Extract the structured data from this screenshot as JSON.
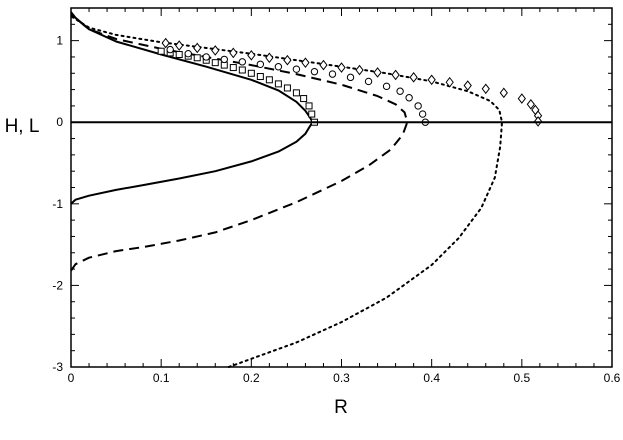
{
  "chart_data": {
    "type": "line",
    "xlabel": "R",
    "ylabel": "H, L",
    "xlim": [
      0,
      0.6
    ],
    "ylim": [
      -3,
      1.4
    ],
    "x_ticks": [
      "0",
      "0.1",
      "0.2",
      "0.3",
      "0.4",
      "0.5",
      "0.6"
    ],
    "y_ticks": [
      "-3",
      "-2",
      "-1",
      "0",
      "1"
    ],
    "grid": false,
    "legend": "none",
    "series": [
      {
        "style": "solid",
        "points": [
          [
            0,
            -1
          ],
          [
            0.005,
            -0.95
          ],
          [
            0.02,
            -0.9
          ],
          [
            0.05,
            -0.83
          ],
          [
            0.08,
            -0.77
          ],
          [
            0.12,
            -0.69
          ],
          [
            0.16,
            -0.6
          ],
          [
            0.2,
            -0.48
          ],
          [
            0.23,
            -0.36
          ],
          [
            0.25,
            -0.24
          ],
          [
            0.26,
            -0.14
          ],
          [
            0.265,
            -0.05
          ],
          [
            0.268,
            0
          ],
          [
            0.265,
            0.06
          ],
          [
            0.26,
            0.14
          ],
          [
            0.25,
            0.25
          ],
          [
            0.23,
            0.39
          ],
          [
            0.2,
            0.52
          ],
          [
            0.15,
            0.68
          ],
          [
            0.1,
            0.83
          ],
          [
            0.05,
            0.99
          ],
          [
            0.02,
            1.14
          ],
          [
            0.005,
            1.28
          ],
          [
            0,
            1.35
          ]
        ]
      },
      {
        "style": "dashed",
        "points": [
          [
            0,
            -1.82
          ],
          [
            0.005,
            -1.74
          ],
          [
            0.02,
            -1.66
          ],
          [
            0.05,
            -1.58
          ],
          [
            0.08,
            -1.53
          ],
          [
            0.12,
            -1.45
          ],
          [
            0.16,
            -1.35
          ],
          [
            0.2,
            -1.2
          ],
          [
            0.25,
            -0.98
          ],
          [
            0.3,
            -0.72
          ],
          [
            0.33,
            -0.53
          ],
          [
            0.355,
            -0.33
          ],
          [
            0.368,
            -0.15
          ],
          [
            0.373,
            0
          ],
          [
            0.37,
            0.12
          ],
          [
            0.36,
            0.22
          ],
          [
            0.34,
            0.32
          ],
          [
            0.3,
            0.46
          ],
          [
            0.25,
            0.59
          ],
          [
            0.2,
            0.7
          ],
          [
            0.15,
            0.8
          ],
          [
            0.1,
            0.9
          ],
          [
            0.05,
            1.02
          ],
          [
            0.02,
            1.14
          ],
          [
            0,
            1.32
          ]
        ]
      },
      {
        "style": "dotted",
        "points": [
          [
            0.175,
            -3
          ],
          [
            0.2,
            -2.9
          ],
          [
            0.25,
            -2.7
          ],
          [
            0.3,
            -2.45
          ],
          [
            0.35,
            -2.15
          ],
          [
            0.4,
            -1.75
          ],
          [
            0.43,
            -1.42
          ],
          [
            0.455,
            -1.05
          ],
          [
            0.47,
            -0.68
          ],
          [
            0.476,
            -0.3
          ],
          [
            0.478,
            0
          ],
          [
            0.475,
            0.15
          ],
          [
            0.465,
            0.26
          ],
          [
            0.44,
            0.38
          ],
          [
            0.4,
            0.5
          ],
          [
            0.35,
            0.6
          ],
          [
            0.3,
            0.68
          ],
          [
            0.25,
            0.76
          ],
          [
            0.2,
            0.84
          ],
          [
            0.15,
            0.91
          ],
          [
            0.1,
            0.98
          ],
          [
            0.05,
            1.07
          ],
          [
            0.02,
            1.16
          ],
          [
            0,
            1.3
          ]
        ]
      },
      {
        "style": "marker-square",
        "points": [
          [
            0.1,
            0.87
          ],
          [
            0.11,
            0.85
          ],
          [
            0.12,
            0.83
          ],
          [
            0.13,
            0.81
          ],
          [
            0.14,
            0.79
          ],
          [
            0.15,
            0.76
          ],
          [
            0.16,
            0.73
          ],
          [
            0.17,
            0.7
          ],
          [
            0.18,
            0.67
          ],
          [
            0.19,
            0.64
          ],
          [
            0.2,
            0.6
          ],
          [
            0.21,
            0.56
          ],
          [
            0.22,
            0.52
          ],
          [
            0.23,
            0.47
          ],
          [
            0.24,
            0.42
          ],
          [
            0.25,
            0.36
          ],
          [
            0.258,
            0.29
          ],
          [
            0.264,
            0.2
          ],
          [
            0.267,
            0.1
          ],
          [
            0.27,
            0
          ]
        ]
      },
      {
        "style": "marker-circle",
        "points": [
          [
            0.11,
            0.89
          ],
          [
            0.13,
            0.84
          ],
          [
            0.15,
            0.8
          ],
          [
            0.17,
            0.77
          ],
          [
            0.19,
            0.74
          ],
          [
            0.21,
            0.71
          ],
          [
            0.23,
            0.68
          ],
          [
            0.25,
            0.65
          ],
          [
            0.27,
            0.62
          ],
          [
            0.29,
            0.59
          ],
          [
            0.31,
            0.55
          ],
          [
            0.33,
            0.5
          ],
          [
            0.35,
            0.44
          ],
          [
            0.365,
            0.38
          ],
          [
            0.375,
            0.3
          ],
          [
            0.385,
            0.2
          ],
          [
            0.39,
            0.1
          ],
          [
            0.393,
            0
          ]
        ]
      },
      {
        "style": "marker-diamond",
        "points": [
          [
            0.105,
            0.97
          ],
          [
            0.12,
            0.94
          ],
          [
            0.14,
            0.91
          ],
          [
            0.16,
            0.88
          ],
          [
            0.18,
            0.85
          ],
          [
            0.2,
            0.82
          ],
          [
            0.22,
            0.79
          ],
          [
            0.24,
            0.76
          ],
          [
            0.26,
            0.73
          ],
          [
            0.28,
            0.7
          ],
          [
            0.3,
            0.67
          ],
          [
            0.32,
            0.64
          ],
          [
            0.34,
            0.61
          ],
          [
            0.36,
            0.58
          ],
          [
            0.38,
            0.55
          ],
          [
            0.4,
            0.52
          ],
          [
            0.42,
            0.49
          ],
          [
            0.44,
            0.45
          ],
          [
            0.46,
            0.41
          ],
          [
            0.48,
            0.36
          ],
          [
            0.5,
            0.29
          ],
          [
            0.51,
            0.22
          ],
          [
            0.515,
            0.15
          ],
          [
            0.518,
            0.08
          ],
          [
            0.518,
            0.01
          ]
        ]
      }
    ]
  }
}
